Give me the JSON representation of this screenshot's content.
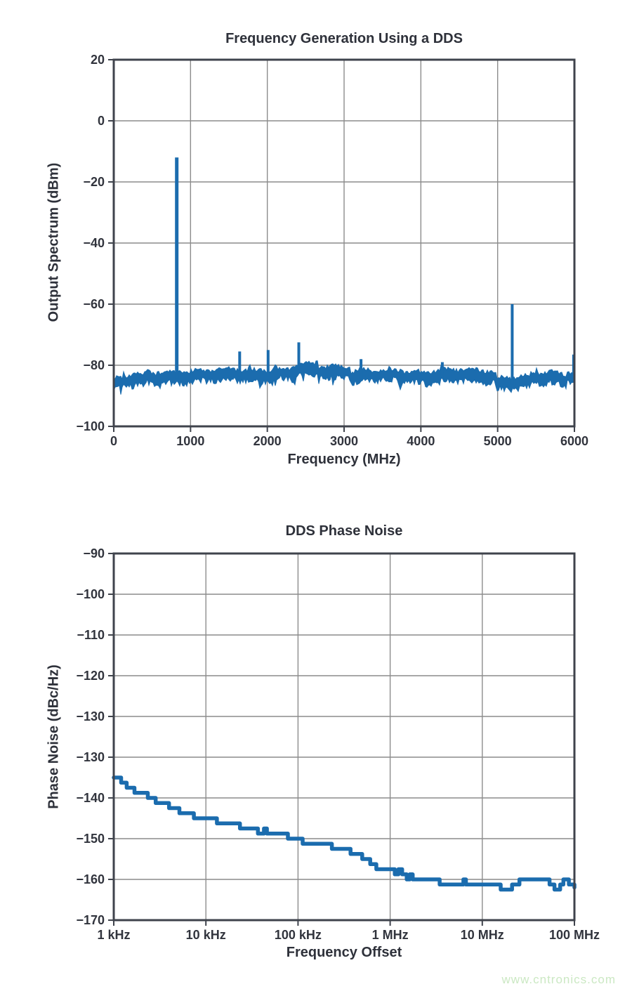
{
  "page": {
    "background": "#ffffff",
    "watermark": {
      "text": "www.cntronics.com",
      "color": "#cbe8c3"
    }
  },
  "colors": {
    "trace": "#1b6cae",
    "grid": "#8c8c8c",
    "frame": "#3f434c",
    "text": "#31343d"
  },
  "render": {
    "seed": 42
  },
  "chart_data": [
    {
      "type": "line",
      "subtype": "spectrum",
      "title": "Frequency Generation Using a DDS",
      "xlabel": "Frequency (MHz)",
      "ylabel": "Output Spectrum (dBm)",
      "xlim": [
        0,
        6000
      ],
      "ylim": [
        -100,
        20
      ],
      "grid": true,
      "x_ticks": [
        0,
        1000,
        2000,
        3000,
        4000,
        5000,
        6000
      ],
      "x_tick_labels": [
        "0",
        "1000",
        "2000",
        "3000",
        "4000",
        "5000",
        "6000"
      ],
      "y_ticks": [
        20,
        0,
        -20,
        -40,
        -60,
        -80,
        -100
      ],
      "y_tick_labels": [
        "20",
        "0",
        "−20",
        "−40",
        "−60",
        "−80",
        "−100"
      ],
      "noise_floor": {
        "mean_dbm": -83.5,
        "band_thickness_db": 3.5,
        "segments": [
          [
            0,
            120,
            -86.0
          ],
          [
            120,
            420,
            -85.1
          ],
          [
            420,
            620,
            -83.8
          ],
          [
            620,
            1480,
            -83.3
          ],
          [
            1480,
            2350,
            -82.7
          ],
          [
            2350,
            3080,
            -81.7
          ],
          [
            3080,
            3620,
            -83.4
          ],
          [
            3620,
            4980,
            -83.3
          ],
          [
            4980,
            5430,
            -85.3
          ],
          [
            5430,
            5900,
            -84.3
          ],
          [
            5900,
            6000,
            -83.2
          ]
        ]
      },
      "spikes": [
        {
          "mhz": 820,
          "dbm": -12
        },
        {
          "mhz": 1640,
          "dbm": -75.5
        },
        {
          "mhz": 2010,
          "dbm": -75
        },
        {
          "mhz": 2410,
          "dbm": -72.5
        },
        {
          "mhz": 3220,
          "dbm": -78
        },
        {
          "mhz": 4280,
          "dbm": -79
        },
        {
          "mhz": 5190,
          "dbm": -60
        },
        {
          "mhz": 5990,
          "dbm": -76.5
        }
      ]
    },
    {
      "type": "line",
      "subtype": "phase-noise",
      "title": "DDS Phase Noise",
      "xlabel": "Frequency Offset",
      "ylabel": "Phase Noise (dBc/Hz)",
      "x_scale": "log",
      "x_ticks": [
        "1 kHz",
        "10 kHz",
        "100 kHz",
        "1 MHz",
        "10 MHz",
        "100 MHz"
      ],
      "y_tick_labels": [
        "−90",
        "−100",
        "−110",
        "−120",
        "−130",
        "−130",
        "−140",
        "−150",
        "−160",
        "−170"
      ],
      "grid": true,
      "points_format": "[decades_above_1kHz, dBc_per_Hz_as_read_on_axis]",
      "points": [
        [
          0.0,
          -134.6
        ],
        [
          0.08,
          -136.2
        ],
        [
          0.17,
          -137.0
        ],
        [
          0.28,
          -138.8
        ],
        [
          0.4,
          -140.0
        ],
        [
          0.51,
          -141.5
        ],
        [
          0.63,
          -142.4
        ],
        [
          0.74,
          -143.9
        ],
        [
          0.87,
          -144.5
        ],
        [
          1.0,
          -145.2
        ],
        [
          1.12,
          -145.7
        ],
        [
          1.25,
          -146.2
        ],
        [
          1.37,
          -147.1
        ],
        [
          1.5,
          -148.0
        ],
        [
          1.63,
          -148.3
        ],
        [
          1.76,
          -148.9
        ],
        [
          1.89,
          -149.7
        ],
        [
          2.02,
          -150.3
        ],
        [
          2.14,
          -151.3
        ],
        [
          2.27,
          -151.4
        ],
        [
          2.4,
          -152.2
        ],
        [
          2.48,
          -152.4
        ],
        [
          2.57,
          -153.6
        ],
        [
          2.67,
          -154.3
        ],
        [
          2.75,
          -155.8
        ],
        [
          2.85,
          -157.2
        ],
        [
          2.93,
          -158.1
        ],
        [
          3.01,
          -157.6
        ],
        [
          3.05,
          -158.8
        ],
        [
          3.09,
          -157.4
        ],
        [
          3.13,
          -158.8
        ],
        [
          3.18,
          -159.3
        ],
        [
          3.31,
          -159.7
        ],
        [
          3.44,
          -159.7
        ],
        [
          3.51,
          -160.8
        ],
        [
          3.62,
          -161.4
        ],
        [
          3.74,
          -160.8
        ],
        [
          3.85,
          -160.8
        ],
        [
          4.0,
          -161.0
        ],
        [
          4.15,
          -161.1
        ],
        [
          4.2,
          -162.5
        ],
        [
          4.27,
          -162.8
        ],
        [
          4.35,
          -161.4
        ],
        [
          4.43,
          -160.2
        ],
        [
          4.5,
          -159.9
        ],
        [
          4.58,
          -160.8
        ],
        [
          4.66,
          -159.4
        ],
        [
          4.73,
          -161.4
        ],
        [
          4.81,
          -162.5
        ],
        [
          4.88,
          -159.6
        ],
        [
          4.94,
          -160.6
        ],
        [
          5.0,
          -162.0
        ]
      ]
    }
  ]
}
